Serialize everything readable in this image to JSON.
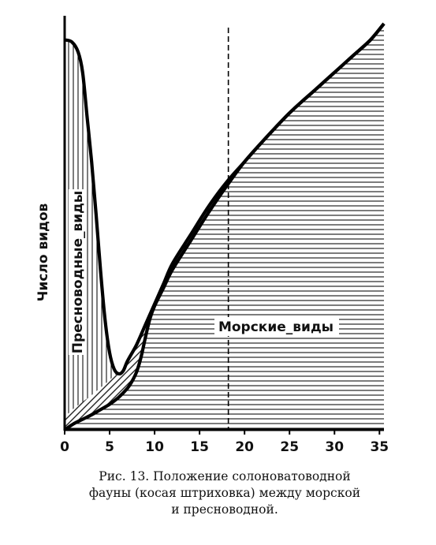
{
  "chart_data": {
    "type": "area",
    "ylabel": "Число видов",
    "x_ticks": [
      0,
      5,
      10,
      15,
      20,
      25,
      30,
      35
    ],
    "xlim": [
      0,
      35.5
    ],
    "ylim": [
      0,
      100
    ],
    "marker_x": 18.2,
    "annotations": {
      "freshwater": "Пресноводные_виды",
      "marine": "Морские_виды"
    },
    "series": [
      {
        "name": "Пресноводные_виды",
        "points": [
          [
            0,
            96
          ],
          [
            0.8,
            95.5
          ],
          [
            1.5,
            93
          ],
          [
            2,
            88
          ],
          [
            2.5,
            77
          ],
          [
            3,
            66
          ],
          [
            3.5,
            53
          ],
          [
            4,
            39
          ],
          [
            4.5,
            27
          ],
          [
            5,
            19
          ],
          [
            5.5,
            15
          ],
          [
            6,
            13.8
          ],
          [
            6.5,
            14.5
          ],
          [
            7,
            17
          ],
          [
            8,
            21
          ],
          [
            9,
            26
          ],
          [
            10,
            31
          ],
          [
            11,
            36
          ],
          [
            12,
            41
          ],
          [
            14,
            48
          ],
          [
            16,
            55
          ],
          [
            18,
            61
          ],
          [
            20,
            66
          ],
          [
            22,
            71
          ],
          [
            25,
            78
          ],
          [
            28,
            84
          ],
          [
            30,
            88
          ],
          [
            32,
            92
          ],
          [
            34,
            96
          ],
          [
            35.5,
            100
          ]
        ]
      },
      {
        "name": "Морские_виды",
        "points": [
          [
            0,
            0
          ],
          [
            1,
            1.5
          ],
          [
            2,
            2.6
          ],
          [
            3,
            3.7
          ],
          [
            4,
            5
          ],
          [
            5,
            6.3
          ],
          [
            6,
            8
          ],
          [
            7,
            10.3
          ],
          [
            7.5,
            12
          ],
          [
            8,
            14.3
          ],
          [
            8.5,
            18
          ],
          [
            9,
            23
          ],
          [
            9.5,
            27.5
          ],
          [
            10,
            30.5
          ],
          [
            11,
            35
          ],
          [
            12,
            39.5
          ],
          [
            14,
            46.5
          ],
          [
            16,
            53.5
          ],
          [
            18,
            60
          ],
          [
            20,
            66
          ],
          [
            22,
            71
          ],
          [
            25,
            78
          ],
          [
            28,
            84
          ],
          [
            30,
            88
          ],
          [
            32,
            92
          ],
          [
            34,
            96
          ],
          [
            35.5,
            100
          ]
        ]
      }
    ]
  },
  "caption": {
    "line1": "Рис. 13. Положение солоноватоводной",
    "line2": "фауны (косая штриховка) между морской",
    "line3": "и пресноводной."
  }
}
